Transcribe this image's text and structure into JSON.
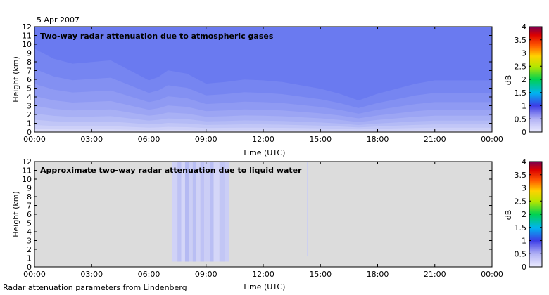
{
  "header": {
    "date": "5 Apr 2007"
  },
  "footer": {
    "credit": "Radar attenuation parameters from Lindenberg"
  },
  "chart_data": [
    {
      "type": "heatmap",
      "title": "Two-way radar attenuation due to atmospheric gases",
      "xlabel": "Time (UTC)",
      "ylabel": "Height (km)",
      "x_ticks": [
        "00:00",
        "03:00",
        "06:00",
        "09:00",
        "12:00",
        "15:00",
        "18:00",
        "21:00",
        "00:00"
      ],
      "y_ticks": [
        "0",
        "1",
        "2",
        "3",
        "4",
        "5",
        "6",
        "7",
        "8",
        "9",
        "10",
        "11",
        "12"
      ],
      "xlim_hours": [
        0,
        24
      ],
      "ylim": [
        0,
        12
      ],
      "colorbar": {
        "label": "dB",
        "ticks": [
          "0",
          "0.5",
          "1",
          "1.5",
          "2",
          "2.5",
          "3",
          "3.5",
          "4"
        ],
        "range": [
          0,
          4
        ]
      },
      "attenuation_db_levels": [
        0.1,
        0.2,
        0.3,
        0.4,
        0.5,
        0.6,
        0.7,
        0.8,
        0.9
      ],
      "level_height_profile": {
        "time_hours": [
          0,
          1,
          2,
          3,
          4,
          5,
          6,
          6.5,
          7,
          8,
          9,
          10,
          11,
          12,
          13,
          14,
          15,
          16,
          17,
          18,
          19,
          20,
          21,
          22,
          23,
          24
        ],
        "height_scale": [
          1.0,
          0.88,
          0.82,
          0.84,
          0.86,
          0.74,
          0.62,
          0.66,
          0.74,
          0.7,
          0.58,
          0.6,
          0.63,
          0.62,
          0.6,
          0.56,
          0.52,
          0.46,
          0.38,
          0.46,
          0.52,
          0.58,
          0.62,
          0.62,
          0.62,
          0.62
        ],
        "contour_heights_km_at_scale_1": [
          0.35,
          0.8,
          1.4,
          2.1,
          3.0,
          4.1,
          5.5,
          7.2,
          9.5
        ]
      },
      "colors": {
        "low": "#e6e6fa",
        "high": "#6a7af0",
        "background": "#dcdcdc"
      }
    },
    {
      "type": "heatmap",
      "title": "Approximate two-way radar attenuation due to liquid water",
      "xlabel": "Time (UTC)",
      "ylabel": "Height (km)",
      "x_ticks": [
        "00:00",
        "03:00",
        "06:00",
        "09:00",
        "12:00",
        "15:00",
        "18:00",
        "21:00",
        "00:00"
      ],
      "y_ticks": [
        "0",
        "1",
        "2",
        "3",
        "4",
        "5",
        "6",
        "7",
        "8",
        "9",
        "10",
        "11",
        "12"
      ],
      "xlim_hours": [
        0,
        24
      ],
      "ylim": [
        0,
        12
      ],
      "colorbar": {
        "label": "dB",
        "ticks": [
          "0",
          "0.5",
          "1",
          "1.5",
          "2",
          "2.5",
          "3",
          "3.5",
          "4"
        ],
        "range": [
          0,
          4
        ]
      },
      "streaks": [
        {
          "start_h": 7.2,
          "end_h": 7.5,
          "bottom_km": 0.6,
          "intensity": 0.25
        },
        {
          "start_h": 7.5,
          "end_h": 7.7,
          "bottom_km": 0.6,
          "intensity": 0.45
        },
        {
          "start_h": 7.7,
          "end_h": 7.9,
          "bottom_km": 0.6,
          "intensity": 0.2
        },
        {
          "start_h": 7.9,
          "end_h": 8.1,
          "bottom_km": 0.6,
          "intensity": 0.55
        },
        {
          "start_h": 8.1,
          "end_h": 8.3,
          "bottom_km": 0.6,
          "intensity": 0.3
        },
        {
          "start_h": 8.3,
          "end_h": 8.5,
          "bottom_km": 0.6,
          "intensity": 0.5
        },
        {
          "start_h": 8.5,
          "end_h": 8.7,
          "bottom_km": 0.6,
          "intensity": 0.25
        },
        {
          "start_h": 8.7,
          "end_h": 8.9,
          "bottom_km": 0.6,
          "intensity": 0.45
        },
        {
          "start_h": 8.9,
          "end_h": 9.2,
          "bottom_km": 0.6,
          "intensity": 0.3
        },
        {
          "start_h": 9.2,
          "end_h": 9.4,
          "bottom_km": 0.6,
          "intensity": 0.5
        },
        {
          "start_h": 9.4,
          "end_h": 9.7,
          "bottom_km": 0.6,
          "intensity": 0.2
        },
        {
          "start_h": 9.7,
          "end_h": 10.0,
          "bottom_km": 0.6,
          "intensity": 0.4
        },
        {
          "start_h": 10.0,
          "end_h": 10.2,
          "bottom_km": 0.6,
          "intensity": 0.3
        },
        {
          "start_h": 14.3,
          "end_h": 14.35,
          "bottom_km": 1.2,
          "intensity": 0.35
        }
      ],
      "colors": {
        "background": "#dcdcdc",
        "low": "#e6e6fa",
        "streak": "#8c96ee"
      }
    }
  ]
}
